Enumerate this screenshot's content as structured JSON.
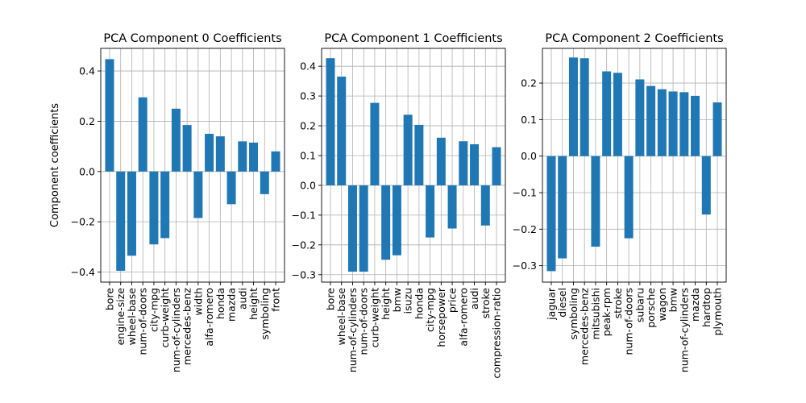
{
  "chart_data": [
    {
      "type": "bar",
      "title": "PCA Component 0 Coefficients",
      "ylabel": "Component coefficients",
      "xlabel": "",
      "ylim": [
        -0.44,
        0.49
      ],
      "yticks": [
        -0.4,
        -0.2,
        0.0,
        0.2,
        0.4
      ],
      "ytick_labels": [
        "−0.4",
        "−0.2",
        "0.0",
        "0.2",
        "0.4"
      ],
      "grid": true,
      "bar_color": "#1f77b4",
      "categories": [
        "bore",
        "engine-size",
        "wheel-base",
        "num-of-doors",
        "city-mpg",
        "curb-weight",
        "num-of-cylinders",
        "mercedes-benz",
        "width",
        "alfa-romero",
        "honda",
        "mazda",
        "audi",
        "height",
        "symboling",
        "front"
      ],
      "values": [
        0.447,
        -0.395,
        -0.335,
        0.295,
        -0.29,
        -0.265,
        0.25,
        0.185,
        -0.185,
        0.15,
        0.14,
        -0.13,
        0.12,
        0.115,
        -0.09,
        0.08
      ]
    },
    {
      "type": "bar",
      "title": "PCA Component 1 Coefficients",
      "ylabel": "",
      "xlabel": "",
      "ylim": [
        -0.325,
        0.46
      ],
      "yticks": [
        -0.3,
        -0.2,
        -0.1,
        0.0,
        0.1,
        0.2,
        0.3,
        0.4
      ],
      "ytick_labels": [
        "−0.3",
        "−0.2",
        "−0.1",
        "0.0",
        "0.1",
        "0.2",
        "0.3",
        "0.4"
      ],
      "grid": true,
      "bar_color": "#1f77b4",
      "categories": [
        "bore",
        "wheel-base",
        "num-of-cylinders",
        "num-of-doors",
        "curb-weight",
        "height",
        "bmw",
        "isuzu",
        "honda",
        "city-mpg",
        "horsepower",
        "price",
        "alfa-romero",
        "audi",
        "stroke",
        "compression-ratio"
      ],
      "values": [
        0.427,
        0.365,
        -0.29,
        -0.29,
        0.277,
        -0.25,
        -0.235,
        0.237,
        0.203,
        -0.175,
        0.16,
        -0.145,
        0.148,
        0.138,
        -0.135,
        0.128
      ]
    },
    {
      "type": "bar",
      "title": "PCA Component 2 Coefficients",
      "ylabel": "",
      "xlabel": "",
      "ylim": [
        -0.345,
        0.295
      ],
      "yticks": [
        -0.3,
        -0.2,
        -0.1,
        0.0,
        0.1,
        0.2
      ],
      "ytick_labels": [
        "−0.3",
        "−0.2",
        "−0.1",
        "0.0",
        "0.1",
        "0.2"
      ],
      "grid": true,
      "bar_color": "#1f77b4",
      "categories": [
        "jaguar",
        "diesel",
        "symboling",
        "mercedes-benz",
        "mitsubishi",
        "peak-rpm",
        "stroke",
        "num-of-doors",
        "subaru",
        "porsche",
        "wagon",
        "bmw",
        "num-of-cylinders",
        "mazda",
        "hardtop",
        "plymouth"
      ],
      "values": [
        -0.315,
        -0.28,
        0.27,
        0.268,
        -0.248,
        0.232,
        0.228,
        -0.225,
        0.21,
        0.192,
        0.183,
        0.177,
        0.175,
        0.165,
        -0.16,
        0.147
      ]
    }
  ]
}
